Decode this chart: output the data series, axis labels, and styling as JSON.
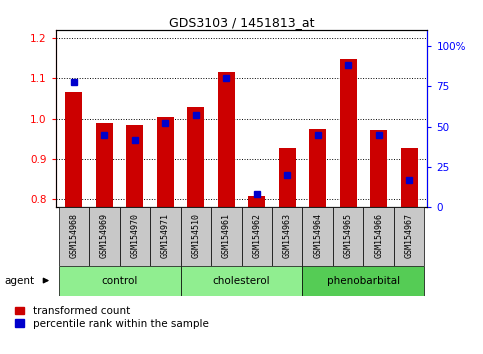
{
  "title": "GDS3103 / 1451813_at",
  "samples": [
    "GSM154968",
    "GSM154969",
    "GSM154970",
    "GSM154971",
    "GSM154510",
    "GSM154961",
    "GSM154962",
    "GSM154963",
    "GSM154964",
    "GSM154965",
    "GSM154966",
    "GSM154967"
  ],
  "transformed_counts": [
    1.065,
    0.99,
    0.985,
    1.005,
    1.03,
    1.115,
    0.808,
    0.928,
    0.975,
    1.148,
    0.972,
    0.928
  ],
  "percentile_ranks": [
    78,
    45,
    42,
    52,
    57,
    80,
    8,
    20,
    45,
    88,
    45,
    17
  ],
  "groups": [
    {
      "label": "control",
      "start": 0,
      "end": 4,
      "color": "#90EE90"
    },
    {
      "label": "cholesterol",
      "start": 4,
      "end": 8,
      "color": "#90EE90"
    },
    {
      "label": "phenobarbital",
      "start": 8,
      "end": 12,
      "color": "#55CC55"
    }
  ],
  "ylim_left": [
    0.78,
    1.22
  ],
  "ylim_right": [
    0,
    110
  ],
  "yticks_left": [
    0.8,
    0.9,
    1.0,
    1.1,
    1.2
  ],
  "yticks_right": [
    0,
    25,
    50,
    75,
    100
  ],
  "ytick_labels_right": [
    "0",
    "25",
    "50",
    "75",
    "100%"
  ],
  "bar_color": "#CC0000",
  "dot_color": "#0000CC",
  "tick_label_bg": "#CCCCCC",
  "agent_label": "agent",
  "legend_transformed": "transformed count",
  "legend_percentile": "percentile rank within the sample",
  "figsize": [
    4.83,
    3.54
  ],
  "dpi": 100
}
